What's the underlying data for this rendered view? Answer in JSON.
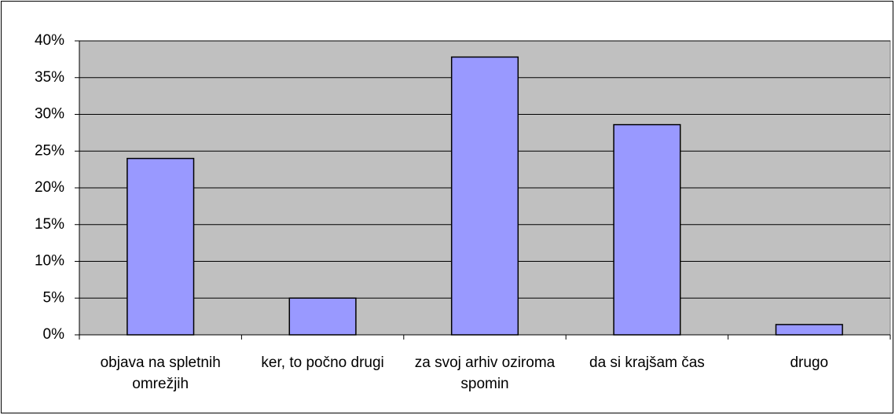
{
  "chart_data": {
    "type": "bar",
    "categories": [
      "objava na spletnih omrežjih",
      "ker, to počno drugi",
      "za svoj arhiv oziroma spomin",
      "da si krajšam čas",
      "drugo"
    ],
    "values": [
      24,
      5,
      37.8,
      28.6,
      1.4
    ],
    "color": "#9999ff",
    "ylim": [
      0,
      40
    ],
    "yticks": [
      {
        "value": 0,
        "label": "0%"
      },
      {
        "value": 5,
        "label": "5%"
      },
      {
        "value": 10,
        "label": "10%"
      },
      {
        "value": 15,
        "label": "15%"
      },
      {
        "value": 20,
        "label": "20%"
      },
      {
        "value": 25,
        "label": "25%"
      },
      {
        "value": 30,
        "label": "30%"
      },
      {
        "value": 35,
        "label": "35%"
      },
      {
        "value": 40,
        "label": "40%"
      }
    ],
    "grid": true
  }
}
